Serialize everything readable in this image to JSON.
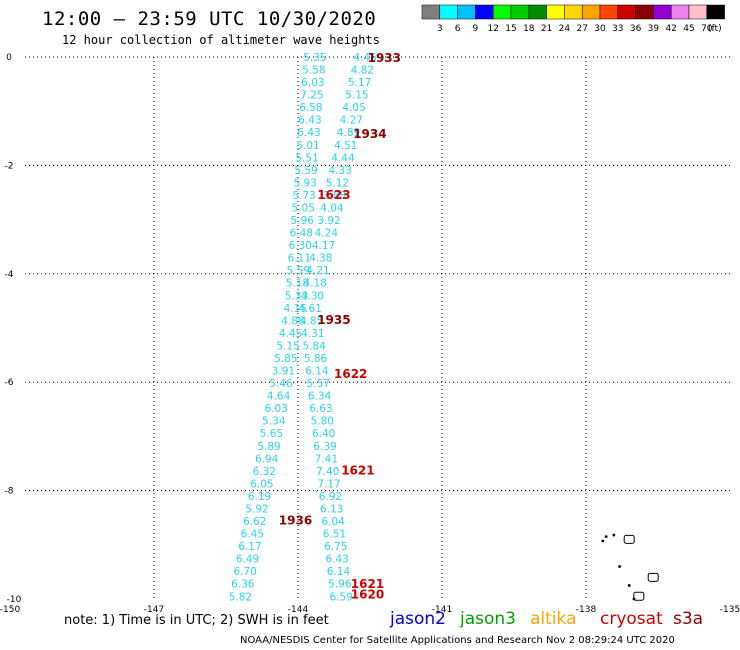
{
  "header": {
    "title": "12:00 – 23:59 UTC 10/30/2020",
    "subtitle": "12 hour collection of altimeter wave heights"
  },
  "legend": {
    "colors": [
      "#808080",
      "#00ffff",
      "#00bfff",
      "#0000ff",
      "#00ff00",
      "#00cd00",
      "#008b00",
      "#ffff00",
      "#ffd700",
      "#ffa500",
      "#ff4500",
      "#cd0000",
      "#8b0000",
      "#9400d3",
      "#ee82ee",
      "#ffc0cb",
      "#000000"
    ],
    "labels": [
      "3",
      "6",
      "9",
      "12",
      "15",
      "18",
      "21",
      "24",
      "27",
      "30",
      "33",
      "36",
      "39",
      "42",
      "45",
      "70",
      "(ft)"
    ]
  },
  "map": {
    "lon_ticks": [
      "-150",
      "-147",
      "-144",
      "-141",
      "-138",
      "-135"
    ],
    "lat_ticks": [
      "0",
      "-2",
      "-4",
      "-6",
      "-8",
      "-10"
    ],
    "lon_min": -150,
    "lon_max": -135,
    "lat_min": -10,
    "lat_max": 0,
    "pass_color": "#2ad4e8",
    "passes": [
      {
        "values": [
          "5.35",
          "5.58",
          "6.03",
          "7.25",
          "6.58",
          "6.43",
          "6.43",
          "5.01",
          "5.51",
          "5.59",
          "5.93",
          "5.73",
          "5.05",
          "5.96",
          "6.48",
          "6.30",
          "6.11",
          "5.59",
          "5.18",
          "5.33",
          "4.15",
          "4.88",
          "4.45",
          "5.15",
          "5.85",
          "3.91",
          "5.46",
          "4.64",
          "6.03",
          "5.34",
          "5.65",
          "5.89",
          "6.94",
          "6.32",
          "6.05",
          "6.19",
          "5.92",
          "6.62",
          "6.45",
          "6.17",
          "6.49",
          "6.70",
          "6.36",
          "5.82"
        ]
      },
      {
        "values": [
          "4.45",
          "4.82",
          "5.17",
          "5.15",
          "4.05",
          "4.27",
          "4.89",
          "4.51",
          "4.44",
          "4.33",
          "5.12",
          "3.88",
          "4.04",
          "3.92",
          "4.24",
          "4.17",
          "4.38",
          "4.21",
          "4.18",
          "4.30",
          "4.61",
          "4.85",
          "4.31",
          "5.84",
          "5.86",
          "6.14",
          "5.57",
          "6.34",
          "6.63",
          "5.80",
          "6.40",
          "6.39",
          "7.41",
          "7.40",
          "7.17",
          "6.92",
          "6.13",
          "6.04",
          "6.51",
          "6.75",
          "6.43",
          "6.14",
          "5.96",
          "6.59"
        ]
      }
    ],
    "time_labels": [
      {
        "text": "1933",
        "color": "#8b0000",
        "lon": -142.55,
        "lat": -0.02
      },
      {
        "text": "1934",
        "color": "#8b0000",
        "lon": -142.85,
        "lat": -1.42
      },
      {
        "text": "1623",
        "color": "#cd0000",
        "lon": -143.6,
        "lat": -2.55
      },
      {
        "text": "1935",
        "color": "#8b0000",
        "lon": -143.6,
        "lat": -4.85
      },
      {
        "text": "1622",
        "color": "#cd0000",
        "lon": -143.25,
        "lat": -5.85
      },
      {
        "text": "1621",
        "color": "#cd0000",
        "lon": -143.1,
        "lat": -7.63
      },
      {
        "text": "1936",
        "color": "#8b0000",
        "lon": -144.4,
        "lat": -8.55
      },
      {
        "text": "1621",
        "color": "#cd0000",
        "lon": -142.9,
        "lat": -9.72
      },
      {
        "text": "1620",
        "color": "#cd0000",
        "lon": -142.9,
        "lat": -9.92
      }
    ],
    "islands": [
      [
        -137.65,
        -8.93
      ],
      [
        -137.58,
        -8.85
      ],
      [
        -137.42,
        -8.82
      ],
      [
        -137.1,
        -8.9
      ],
      [
        -137.3,
        -9.4
      ],
      [
        -136.6,
        -9.6
      ],
      [
        -137.1,
        -9.75
      ],
      [
        -136.9,
        -9.95
      ],
      [
        -137.0,
        -10.0
      ]
    ]
  },
  "footer": {
    "note": "note:  1) Time is in UTC;  2) SWH is in feet",
    "credit": "NOAA/NESDIS Center for Satellite Applications and Research     Nov  2 08:29:24 UTC 2020",
    "satellites": [
      {
        "name": "jason2",
        "color": "#0000ee"
      },
      {
        "name": "jason3",
        "color": "#00a000"
      },
      {
        "name": "altika",
        "color": "#ffa500"
      },
      {
        "name": "cryosat",
        "color": "#cd0000"
      },
      {
        "name": "s3a",
        "color": "#8b0000"
      }
    ]
  }
}
